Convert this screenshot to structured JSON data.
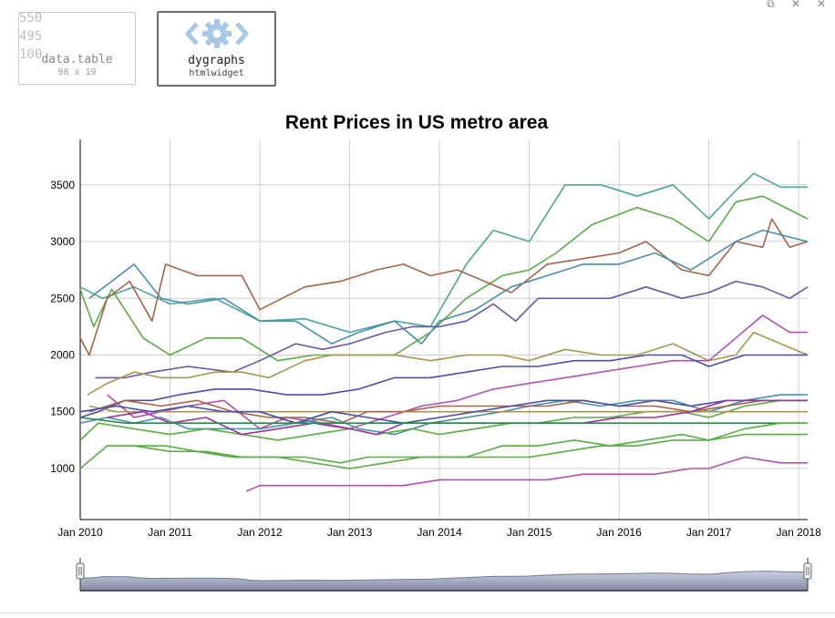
{
  "tabs": [
    {
      "name": "data.table",
      "sub": "98 x 19",
      "ghost_values": [
        "550",
        "495",
        "100"
      ]
    },
    {
      "name": "dygraphs",
      "sub": "htmlwidget",
      "icon": "gear-code-icon"
    }
  ],
  "window_controls": [
    "⧉",
    "✕",
    "✕"
  ],
  "chart_data": {
    "type": "line",
    "title": "Rent Prices in US metro area",
    "xlabel": "",
    "ylabel": "",
    "x_start": "2010-01",
    "x_end": "2018-02",
    "xlim": [
      2010.0,
      2018.1
    ],
    "ylim": [
      550,
      3900
    ],
    "y_ticks": [
      1000,
      1500,
      2000,
      2500,
      3000,
      3500
    ],
    "x_tick_labels": [
      "Jan 2010",
      "Jan 2011",
      "Jan 2012",
      "Jan 2013",
      "Jan 2014",
      "Jan 2015",
      "Jan 2016",
      "Jan 2017",
      "Jan 2018"
    ],
    "grid": true,
    "legend": "none",
    "range_selector": true,
    "series": [
      {
        "color": "#4aa59a",
        "x": [
          2010.0,
          2010.25,
          2010.6,
          2011.0,
          2011.5,
          2012.0,
          2012.5,
          2013.0,
          2013.5,
          2013.9,
          2014.3,
          2014.6,
          2015.0,
          2015.4,
          2015.8,
          2016.2,
          2016.6,
          2017.0,
          2017.3,
          2017.5,
          2017.8,
          2018.1
        ],
        "y": [
          2600,
          2500,
          2600,
          2450,
          2500,
          2300,
          2320,
          2200,
          2300,
          2250,
          2800,
          3100,
          3000,
          3500,
          3500,
          3400,
          3500,
          3200,
          3450,
          3600,
          3480,
          3480
        ]
      },
      {
        "color": "#5aab45",
        "x": [
          2010.0,
          2010.15,
          2010.35,
          2010.7,
          2011.0,
          2011.4,
          2011.8,
          2012.2,
          2012.6,
          2013.0,
          2013.5,
          2013.9,
          2014.3,
          2014.7,
          2015.0,
          2015.3,
          2015.7,
          2016.2,
          2016.6,
          2017.0,
          2017.3,
          2017.6,
          2018.1
        ],
        "y": [
          2580,
          2250,
          2580,
          2150,
          2000,
          2150,
          2150,
          1950,
          2000,
          2000,
          2000,
          2200,
          2500,
          2700,
          2750,
          2900,
          3150,
          3300,
          3200,
          3000,
          3350,
          3400,
          3200
        ]
      },
      {
        "color": "#a5634a",
        "x": [
          2010.0,
          2010.1,
          2010.3,
          2010.55,
          2010.8,
          2010.95,
          2011.3,
          2011.8,
          2012.0,
          2012.5,
          2012.9,
          2013.3,
          2013.6,
          2013.9,
          2014.2,
          2014.5,
          2014.8,
          2015.2,
          2015.6,
          2016.0,
          2016.3,
          2016.7,
          2017.0,
          2017.3,
          2017.6,
          2017.7,
          2017.9,
          2018.1
        ],
        "y": [
          2150,
          2000,
          2500,
          2650,
          2300,
          2800,
          2700,
          2700,
          2400,
          2600,
          2650,
          2750,
          2800,
          2700,
          2750,
          2650,
          2550,
          2800,
          2850,
          2900,
          3000,
          2750,
          2700,
          3000,
          2950,
          3200,
          2950,
          3000
        ]
      },
      {
        "color": "#4a8ea8",
        "x": [
          2010.1,
          2010.35,
          2010.6,
          2010.9,
          2011.2,
          2011.6,
          2012.0,
          2012.4,
          2012.8,
          2013.1,
          2013.5,
          2013.8,
          2014.0,
          2014.4,
          2014.8,
          2015.2,
          2015.6,
          2016.0,
          2016.4,
          2016.8,
          2017.0,
          2017.3,
          2017.6,
          2018.1
        ],
        "y": [
          2500,
          2650,
          2800,
          2500,
          2450,
          2500,
          2300,
          2300,
          2100,
          2200,
          2300,
          2100,
          2300,
          2400,
          2600,
          2700,
          2800,
          2800,
          2900,
          2750,
          2850,
          3000,
          3100,
          3000
        ]
      },
      {
        "color": "#6a54a8",
        "x": [
          2010.17,
          2010.5,
          2010.8,
          2011.2,
          2011.7,
          2012.0,
          2012.4,
          2012.7,
          2013.0,
          2013.4,
          2013.7,
          2014.0,
          2014.3,
          2014.6,
          2014.85,
          2015.1,
          2015.5,
          2015.9,
          2016.3,
          2016.7,
          2017.0,
          2017.3,
          2017.6,
          2017.9,
          2018.1
        ],
        "y": [
          1800,
          1800,
          1850,
          1900,
          1850,
          1950,
          2100,
          2050,
          2100,
          2200,
          2250,
          2250,
          2300,
          2450,
          2300,
          2500,
          2500,
          2500,
          2600,
          2500,
          2550,
          2650,
          2600,
          2500,
          2600
        ]
      },
      {
        "color": "#a89650",
        "x": [
          2010.08,
          2010.3,
          2010.6,
          2010.9,
          2011.2,
          2011.5,
          2011.8,
          2012.1,
          2012.5,
          2012.8,
          2013.2,
          2013.5,
          2013.9,
          2014.3,
          2014.7,
          2015.0,
          2015.4,
          2015.8,
          2016.2,
          2016.6,
          2017.0,
          2017.3,
          2017.5,
          2017.8,
          2018.1
        ],
        "y": [
          1650,
          1750,
          1850,
          1800,
          1800,
          1850,
          1850,
          1800,
          1950,
          2000,
          2000,
          2000,
          1950,
          2000,
          2000,
          1950,
          2050,
          2000,
          2000,
          2100,
          1950,
          2000,
          2200,
          2100,
          2000
        ]
      },
      {
        "color": "#b050b0",
        "x": [
          2010.3,
          2010.6,
          2010.9,
          2011.2,
          2011.6,
          2012.0,
          2012.3,
          2012.7,
          2013.0,
          2013.4,
          2013.8,
          2014.2,
          2014.6,
          2015.0,
          2015.4,
          2015.8,
          2016.2,
          2016.6,
          2017.0,
          2017.3,
          2017.6,
          2017.9,
          2018.1
        ],
        "y": [
          1650,
          1450,
          1500,
          1550,
          1600,
          1350,
          1450,
          1400,
          1350,
          1450,
          1550,
          1600,
          1700,
          1750,
          1800,
          1850,
          1900,
          1950,
          1950,
          2150,
          2350,
          2200,
          2200
        ]
      },
      {
        "color": "#4a4ea8",
        "x": [
          2010.0,
          2010.2,
          2010.5,
          2010.8,
          2011.1,
          2011.5,
          2011.9,
          2012.3,
          2012.7,
          2013.1,
          2013.5,
          2013.9,
          2014.3,
          2014.7,
          2015.1,
          2015.5,
          2015.9,
          2016.3,
          2016.7,
          2017.0,
          2017.4,
          2017.7,
          2018.1
        ],
        "y": [
          1450,
          1500,
          1600,
          1600,
          1650,
          1700,
          1700,
          1650,
          1650,
          1700,
          1800,
          1800,
          1850,
          1900,
          1900,
          1950,
          1950,
          2000,
          2000,
          1900,
          2000,
          2000,
          2000
        ]
      },
      {
        "color": "#4a90a8",
        "x": [
          2010.0,
          2010.3,
          2010.6,
          2010.9,
          2011.2,
          2011.6,
          2012.0,
          2012.4,
          2012.8,
          2013.1,
          2013.5,
          2013.9,
          2014.3,
          2014.7,
          2015.0,
          2015.4,
          2015.8,
          2016.2,
          2016.6,
          2017.0,
          2017.4,
          2017.8,
          2018.1
        ],
        "y": [
          1400,
          1450,
          1400,
          1450,
          1350,
          1350,
          1350,
          1400,
          1450,
          1350,
          1300,
          1400,
          1450,
          1500,
          1550,
          1600,
          1550,
          1600,
          1600,
          1500,
          1600,
          1650,
          1650
        ]
      },
      {
        "color": "#5aab45",
        "x": [
          2010.0,
          2010.2,
          2010.6,
          2011.0,
          2011.4,
          2011.8,
          2012.2,
          2012.6,
          2013.0,
          2013.3,
          2013.7,
          2014.0,
          2014.4,
          2014.8,
          2015.1,
          2015.5,
          2015.9,
          2016.3,
          2016.7,
          2017.0,
          2017.4,
          2017.8,
          2018.1
        ],
        "y": [
          1250,
          1400,
          1350,
          1300,
          1350,
          1300,
          1250,
          1300,
          1350,
          1300,
          1350,
          1300,
          1350,
          1400,
          1400,
          1450,
          1450,
          1500,
          1500,
          1450,
          1550,
          1600,
          1600
        ]
      },
      {
        "color": "#a89650",
        "x": [
          2010.1,
          2010.4,
          2010.7,
          2011.0,
          2011.4,
          2011.8,
          2012.2,
          2012.6,
          2013.0,
          2013.4,
          2013.8,
          2014.2,
          2014.6,
          2015.0,
          2015.4,
          2015.8,
          2016.2,
          2016.6,
          2017.0,
          2017.4,
          2017.8,
          2018.1
        ],
        "y": [
          1550,
          1500,
          1500,
          1500,
          1500,
          1500,
          1500,
          1500,
          1500,
          1500,
          1500,
          1500,
          1500,
          1500,
          1500,
          1500,
          1500,
          1500,
          1500,
          1500,
          1500,
          1500
        ]
      },
      {
        "color": "#a5634a",
        "x": [
          2010.1,
          2010.5,
          2010.9,
          2011.3,
          2011.7,
          2012.1,
          2012.5,
          2012.9,
          2013.2,
          2013.6,
          2014.0,
          2014.4,
          2014.8,
          2015.2,
          2015.6,
          2016.0,
          2016.4,
          2016.8,
          2017.2,
          2017.6,
          2018.1
        ],
        "y": [
          1500,
          1600,
          1550,
          1600,
          1500,
          1450,
          1450,
          1400,
          1500,
          1500,
          1550,
          1550,
          1550,
          1550,
          1600,
          1550,
          1550,
          1500,
          1550,
          1600,
          1600
        ]
      },
      {
        "color": "#4a4ea8",
        "x": [
          2010.0,
          2010.4,
          2010.8,
          2011.2,
          2011.6,
          2012.0,
          2012.4,
          2012.8,
          2013.2,
          2013.6,
          2014.0,
          2014.4,
          2014.8,
          2015.2,
          2015.6,
          2016.0,
          2016.4,
          2016.8,
          2017.2,
          2017.6,
          2018.1
        ],
        "y": [
          1500,
          1550,
          1500,
          1550,
          1500,
          1500,
          1400,
          1500,
          1450,
          1400,
          1450,
          1500,
          1550,
          1600,
          1600,
          1550,
          1600,
          1550,
          1600,
          1600,
          1600
        ]
      },
      {
        "color": "#a030a0",
        "x": [
          2010.3,
          2010.7,
          2011.0,
          2011.4,
          2011.8,
          2012.2,
          2012.6,
          2013.0,
          2013.3,
          2013.6,
          2014.0,
          2014.4,
          2014.8,
          2015.2,
          2015.6,
          2016.0,
          2016.4,
          2016.8,
          2017.2,
          2017.6,
          2018.1
        ],
        "y": [
          1450,
          1500,
          1400,
          1450,
          1300,
          1350,
          1400,
          1350,
          1300,
          1400,
          1400,
          1400,
          1400,
          1400,
          1400,
          1450,
          1450,
          1500,
          1600,
          1600,
          1600
        ]
      },
      {
        "color": "#2a8a4a",
        "x": [
          2010.0,
          2010.5,
          2011.0,
          2011.5,
          2012.0,
          2012.5,
          2013.0,
          2013.5,
          2014.0,
          2014.5,
          2015.0,
          2015.5,
          2016.0,
          2016.5,
          2017.0,
          2017.5,
          2018.1
        ],
        "y": [
          1450,
          1400,
          1400,
          1400,
          1400,
          1400,
          1400,
          1400,
          1400,
          1400,
          1400,
          1400,
          1400,
          1400,
          1400,
          1400,
          1400
        ]
      },
      {
        "color": "#5aab45",
        "x": [
          2010.0,
          2010.3,
          2010.6,
          2010.95,
          2011.3,
          2011.7,
          2012.1,
          2012.5,
          2012.9,
          2013.2,
          2013.5,
          2013.9,
          2014.3,
          2014.7,
          2015.1,
          2015.5,
          2015.9,
          2016.3,
          2016.7,
          2017.0,
          2017.4,
          2017.8,
          2018.1
        ],
        "y": [
          1000,
          1200,
          1200,
          1200,
          1150,
          1100,
          1100,
          1100,
          1050,
          1100,
          1100,
          1100,
          1100,
          1200,
          1200,
          1250,
          1200,
          1250,
          1300,
          1250,
          1350,
          1400,
          1400
        ]
      },
      {
        "color": "#5aab45",
        "x": [
          2010.6,
          2011.0,
          2011.4,
          2011.8,
          2012.2,
          2012.6,
          2013.0,
          2013.4,
          2013.8,
          2014.2,
          2014.6,
          2015.0,
          2015.4,
          2015.8,
          2016.2,
          2016.6,
          2017.0,
          2017.4,
          2017.8,
          2018.1
        ],
        "y": [
          1200,
          1150,
          1150,
          1100,
          1100,
          1050,
          1000,
          1050,
          1100,
          1100,
          1100,
          1100,
          1150,
          1200,
          1200,
          1250,
          1250,
          1300,
          1300,
          1300
        ]
      },
      {
        "color": "#b050b0",
        "x": [
          2011.85,
          2012.0,
          2012.4,
          2012.8,
          2013.2,
          2013.6,
          2014.0,
          2014.4,
          2014.8,
          2015.2,
          2015.6,
          2016.0,
          2016.4,
          2016.8,
          2017.0,
          2017.4,
          2017.8,
          2018.1
        ],
        "y": [
          800,
          850,
          850,
          850,
          850,
          850,
          900,
          900,
          900,
          900,
          950,
          950,
          950,
          1000,
          1000,
          1100,
          1050,
          1050
        ]
      }
    ]
  }
}
